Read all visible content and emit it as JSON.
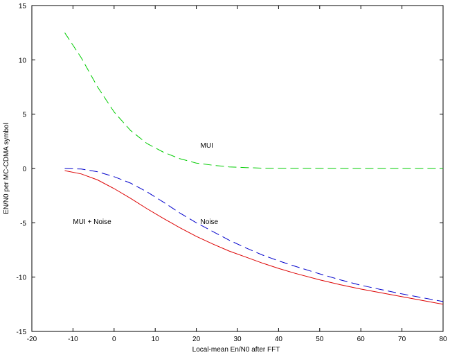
{
  "chart_data": {
    "type": "line",
    "title": "",
    "xlabel": "Local-mean En/N0 after FFT",
    "ylabel": "EN/N0 per MC-CDMA symbol",
    "xlim": [
      -20,
      80
    ],
    "ylim": [
      -15,
      15
    ],
    "xticks": [
      -20,
      -10,
      0,
      10,
      20,
      30,
      40,
      50,
      60,
      70,
      80
    ],
    "yticks": [
      -15,
      -10,
      -5,
      0,
      5,
      10,
      15
    ],
    "grid": false,
    "legend": "none",
    "series": [
      {
        "label_ref": "MUI",
        "color": "#00cc00",
        "dash": "dashed",
        "x": [
          -12,
          -8,
          -4,
          0,
          4,
          8,
          12,
          16,
          20,
          24,
          28,
          32,
          36,
          40,
          50,
          60,
          70,
          80
        ],
        "y": [
          12.5,
          10.2,
          7.5,
          5.2,
          3.5,
          2.3,
          1.5,
          0.9,
          0.5,
          0.3,
          0.15,
          0.08,
          0.03,
          0.02,
          0.01,
          0.0,
          0.0,
          0.0
        ]
      },
      {
        "label_ref": "Noise",
        "color": "#0000cc",
        "dash": "dashed",
        "x": [
          -12,
          -8,
          -4,
          0,
          4,
          8,
          12,
          16,
          20,
          24,
          28,
          32,
          36,
          40,
          44,
          50,
          55,
          60,
          65,
          70,
          75,
          80
        ],
        "y": [
          0.0,
          -0.05,
          -0.3,
          -0.75,
          -1.35,
          -2.15,
          -3.1,
          -4.1,
          -5.0,
          -5.8,
          -6.6,
          -7.3,
          -7.95,
          -8.5,
          -9.0,
          -9.7,
          -10.25,
          -10.75,
          -11.15,
          -11.55,
          -11.9,
          -12.25
        ]
      },
      {
        "label_ref": "MUI + Noise",
        "color": "#dd0000",
        "dash": "solid",
        "x": [
          -12,
          -8,
          -4,
          0,
          4,
          8,
          12,
          16,
          20,
          24,
          28,
          32,
          36,
          40,
          44,
          50,
          55,
          60,
          65,
          70,
          75,
          80
        ],
        "y": [
          -0.2,
          -0.5,
          -1.05,
          -1.85,
          -2.75,
          -3.7,
          -4.6,
          -5.45,
          -6.25,
          -6.95,
          -7.6,
          -8.15,
          -8.7,
          -9.2,
          -9.65,
          -10.25,
          -10.7,
          -11.1,
          -11.45,
          -11.8,
          -12.15,
          -12.5
        ]
      }
    ],
    "annotations": [
      {
        "text": "MUI",
        "x": 21,
        "y": 1.9
      },
      {
        "text": "Noise",
        "x": 21,
        "y": -5.1
      },
      {
        "text": "MUI + Noise",
        "x": -10,
        "y": -5.1
      }
    ]
  }
}
